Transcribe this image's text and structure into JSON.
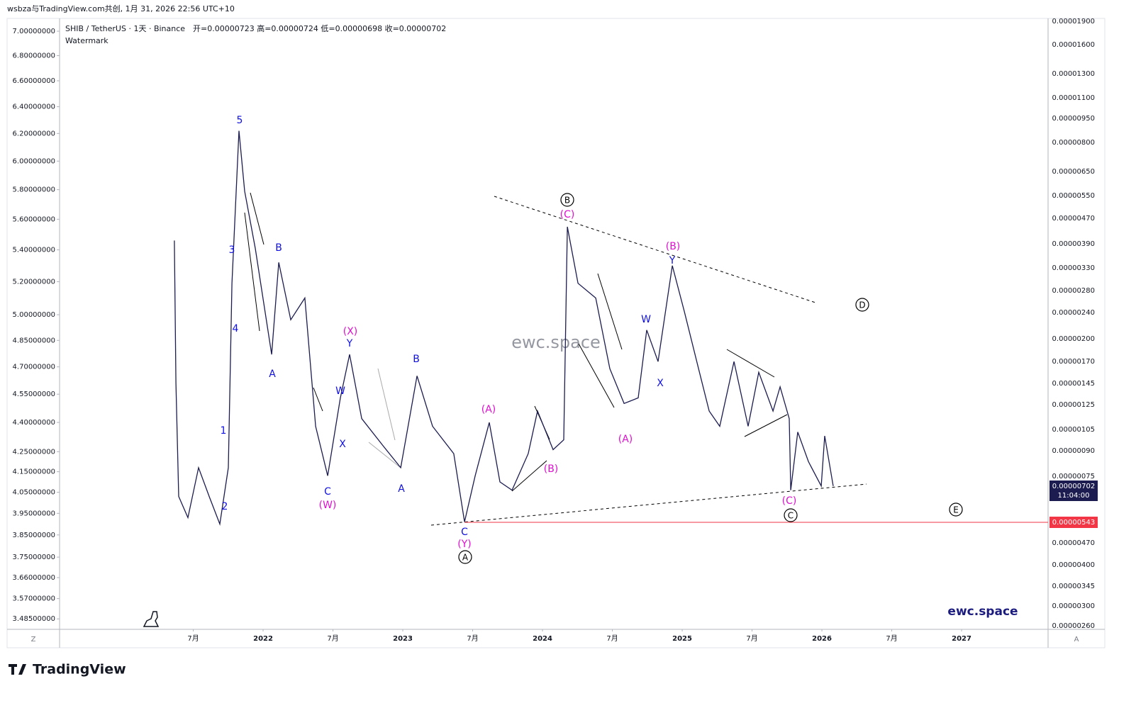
{
  "header": {
    "credit": "wsbza与TradingView.com共创, 1月 31, 2026 22:56 UTC+10",
    "symbol": "SHIB / TetherUS · 1天 · Binance",
    "ohlc": "开=0.00000723 高=0.00000724 低=0.00000698 收=0.00000702",
    "watermark_label": "Watermark"
  },
  "chart_data": {
    "type": "line",
    "log_scale": true,
    "watermark": "ewc.space",
    "brand": "ewc.space",
    "xlim": [
      2020.543,
      2027.619
    ],
    "xticks": [
      {
        "value": 2021.5,
        "label": "7月"
      },
      2022,
      {
        "value": 2022.5,
        "label": "7月"
      },
      2023,
      {
        "value": 2023.5,
        "label": "7月"
      },
      2024,
      {
        "value": 2024.5,
        "label": "7月"
      },
      2025,
      {
        "value": 2025.5,
        "label": "7月"
      },
      2026,
      {
        "value": 2026.5,
        "label": "7月"
      },
      2027
    ],
    "ylim": [
      3.442,
      7.107
    ],
    "yticks": [
      {
        "value": 7.0,
        "label": "7.00000000"
      },
      {
        "value": 6.8,
        "label": "6.80000000"
      },
      {
        "value": 6.6,
        "label": "6.60000000"
      },
      {
        "value": 6.4,
        "label": "6.40000000"
      },
      {
        "value": 6.2,
        "label": "6.20000000"
      },
      {
        "value": 6.0,
        "label": "6.00000000"
      },
      {
        "value": 5.8,
        "label": "5.80000000"
      },
      {
        "value": 5.6,
        "label": "5.60000000"
      },
      {
        "value": 5.4,
        "label": "5.40000000"
      },
      {
        "value": 5.2,
        "label": "5.20000000"
      },
      {
        "value": 5.0,
        "label": "5.00000000"
      },
      {
        "value": 4.85,
        "label": "4.85000000"
      },
      {
        "value": 4.7,
        "label": "4.70000000"
      },
      {
        "value": 4.55,
        "label": "4.55000000"
      },
      {
        "value": 4.4,
        "label": "4.40000000"
      },
      {
        "value": 4.25,
        "label": "4.25000000"
      },
      {
        "value": 4.15,
        "label": "4.15000000"
      },
      {
        "value": 4.05,
        "label": "4.05000000"
      },
      {
        "value": 3.95,
        "label": "3.95000000"
      },
      {
        "value": 3.85,
        "label": "3.85000000"
      },
      {
        "value": 3.75,
        "label": "3.75000000"
      },
      {
        "value": 3.66,
        "label": "3.66000000"
      },
      {
        "value": 3.57,
        "label": "3.57000000"
      },
      {
        "value": 3.485,
        "label": "3.48500000"
      }
    ],
    "right_axis_labels": [
      "0.00001900",
      "0.00001600",
      "0.00001300",
      "0.00001100",
      "0.00000950",
      "0.00000800",
      "0.00000650",
      "0.00000550",
      "0.00000470",
      "0.00000390",
      "0.00000330",
      "0.00000280",
      "0.00000240",
      "0.00000200",
      "0.00000170",
      "0.00000145",
      "0.00000125",
      "0.00000105",
      "0.00000090",
      "0.00000075",
      "0.00000470",
      "0.00000400",
      "0.00000345",
      "0.00000300",
      "0.00000260"
    ],
    "last_price_label": "0.00000702",
    "countdown": "11:04:00",
    "support_label": "0.00000543",
    "series": [
      {
        "name": "SHIB / TetherUS",
        "color": "#1c1c50",
        "x": [
          2021.365,
          2021.376,
          2021.396,
          2021.462,
          2021.538,
          2021.614,
          2021.69,
          2021.751,
          2021.777,
          2021.827,
          2021.868,
          2021.944,
          2022.061,
          2022.112,
          2022.198,
          2022.299,
          2022.376,
          2022.462,
          2022.553,
          2022.619,
          2022.706,
          2022.858,
          2022.985,
          2023.102,
          2023.213,
          2023.365,
          2023.442,
          2023.518,
          2023.619,
          2023.695,
          2023.782,
          2023.898,
          2023.964,
          2024.076,
          2024.152,
          2024.178,
          2024.254,
          2024.381,
          2024.482,
          2024.584,
          2024.685,
          2024.746,
          2024.827,
          2024.929,
          2025.015,
          2025.117,
          2025.193,
          2025.269,
          2025.371,
          2025.472,
          2025.548,
          2025.65,
          2025.701,
          2025.766,
          2025.777,
          2025.827,
          2025.904,
          2025.995,
          2026.02,
          2026.081
        ],
        "values": [
          5.46,
          4.61,
          4.03,
          3.93,
          4.17,
          4.03,
          3.9,
          4.17,
          5.19,
          6.22,
          5.79,
          5.41,
          4.77,
          5.32,
          4.97,
          5.1,
          4.38,
          4.13,
          4.53,
          4.77,
          4.42,
          4.28,
          4.17,
          4.65,
          4.38,
          4.24,
          3.91,
          4.13,
          4.4,
          4.1,
          4.06,
          4.24,
          4.46,
          4.26,
          4.31,
          5.55,
          5.19,
          5.1,
          4.69,
          4.5,
          4.53,
          4.91,
          4.73,
          5.3,
          5.02,
          4.69,
          4.46,
          4.38,
          4.73,
          4.38,
          4.67,
          4.46,
          4.59,
          4.42,
          4.06,
          4.35,
          4.2,
          4.08,
          4.33,
          4.08
        ]
      }
    ],
    "annotations": {
      "blue": {
        "color": "#1010e0",
        "labels": [
          "5",
          "3",
          "4",
          "1",
          "2",
          "B",
          "A",
          "C",
          "W",
          "X",
          "Y",
          "B",
          "A",
          "C",
          "W",
          "X",
          "Y"
        ]
      },
      "magenta": {
        "color": "#e010d0",
        "labels": [
          "(X)",
          "(W)",
          "(A)",
          "(B)",
          "(Y)",
          "(C)",
          "(A)",
          "(B)",
          "(C)"
        ]
      },
      "circled": {
        "color": "#000000",
        "labels": [
          "B",
          "A",
          "C",
          "D",
          "E"
        ]
      }
    },
    "axis_corner_left": "Z",
    "axis_corner_right": "A"
  },
  "footer": {
    "logo": "TradingView"
  }
}
